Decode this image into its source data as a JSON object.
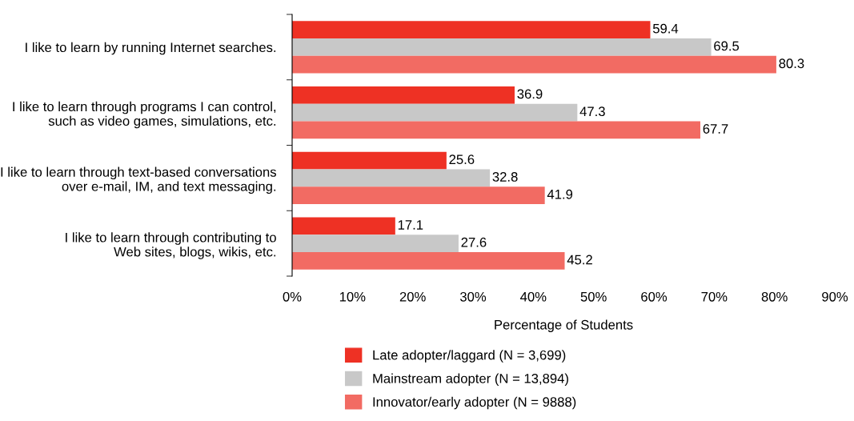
{
  "chart_data": {
    "type": "bar",
    "orientation": "horizontal",
    "xlabel": "Percentage of Students",
    "categories": [
      "I like to learn by running Internet searches.",
      "I like to learn through programs I can control,\nsuch as video games, simulations, etc.",
      "I like to learn through text-based conversations\nover e-mail, IM, and text messaging.",
      "I like to learn through contributing to\nWeb sites, blogs, wikis, etc."
    ],
    "series": [
      {
        "name": "Late adopter/laggard (N = 3,699)",
        "color": "#ee3124",
        "values": [
          59.4,
          36.9,
          25.6,
          17.1
        ]
      },
      {
        "name": "Mainstream adopter (N = 13,894)",
        "color": "#c8c8c8",
        "values": [
          69.5,
          47.3,
          32.8,
          27.6
        ]
      },
      {
        "name": "Innovator/early adopter (N = 9888)",
        "color": "#f26b63",
        "values": [
          80.3,
          67.7,
          41.9,
          45.2
        ]
      }
    ],
    "xlim": [
      0,
      90
    ],
    "xticks": [
      {
        "value": 0,
        "label": "0%"
      },
      {
        "value": 10,
        "label": "10%"
      },
      {
        "value": 20,
        "label": "20%"
      },
      {
        "value": 30,
        "label": "30%"
      },
      {
        "value": 40,
        "label": "40%"
      },
      {
        "value": 50,
        "label": "50%"
      },
      {
        "value": 60,
        "label": "60%"
      },
      {
        "value": 70,
        "label": "70%"
      },
      {
        "value": 80,
        "label": "80%"
      },
      {
        "value": 90,
        "label": "90%"
      }
    ],
    "data_labels": true,
    "grid": false,
    "legend": "bottom"
  }
}
